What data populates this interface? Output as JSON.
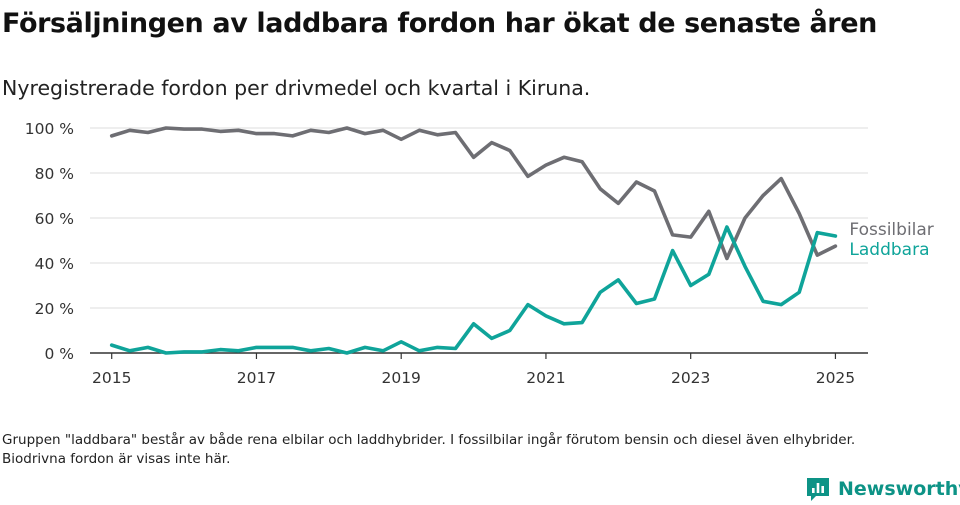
{
  "title": "Försäljningen av laddbara fordon har ökat de senaste åren",
  "subtitle": "Nyregistrerade fordon per drivmedel och kvartal i Kiruna.",
  "note": "Gruppen \"laddbara\" består av både rena elbilar och laddhybrider. I fossilbilar ingår förutom bensin och diesel även elhybrider. Biodrivna fordon är visas inte här.",
  "brand": {
    "name": "Newsworthy",
    "logo_icon": "bar-chart-logo-icon",
    "color": "#0d9386"
  },
  "chart_data": {
    "type": "line",
    "title": "Försäljningen av laddbara fordon har ökat de senaste åren",
    "subtitle": "Nyregistrerade fordon per drivmedel och kvartal i Kiruna.",
    "x_start": "2015-01-01",
    "x_step": "quarter",
    "x_ticks": [
      2015,
      2017,
      2019,
      2021,
      2023,
      2025
    ],
    "xlim": [
      2014.7,
      2025.45
    ],
    "y_ticks": [
      0,
      20,
      40,
      60,
      80,
      100
    ],
    "y_tick_labels": [
      "0 %",
      "20 %",
      "40 %",
      "60 %",
      "80 %",
      "100 %"
    ],
    "ylim": [
      0,
      100
    ],
    "grid": true,
    "legend": "right",
    "series": [
      {
        "name": "Fossilbilar",
        "color": "#6e6e73",
        "values": [
          96.5,
          99,
          98,
          100,
          99.5,
          99.5,
          98.5,
          99,
          97.5,
          97.5,
          96.5,
          99,
          98,
          100,
          97.5,
          99,
          95,
          99,
          97,
          98,
          87,
          93.5,
          90,
          78.5,
          83.5,
          87,
          85,
          73,
          66.5,
          76,
          72,
          52.5,
          51.5,
          63,
          42,
          60,
          70,
          77.5,
          62,
          43.5,
          47.5
        ]
      },
      {
        "name": "Laddbara",
        "color": "#0fa49a",
        "values": [
          3.5,
          1,
          2.5,
          0,
          0.5,
          0.5,
          1.5,
          1,
          2.5,
          2.5,
          2.5,
          1,
          2,
          0,
          2.5,
          1,
          5,
          1,
          2.5,
          2,
          13,
          6.5,
          10,
          21.5,
          16.5,
          13,
          13.5,
          27,
          32.5,
          22,
          24,
          45.5,
          30,
          35,
          56,
          38.5,
          23,
          21.5,
          27,
          53.5,
          52
        ]
      }
    ]
  }
}
